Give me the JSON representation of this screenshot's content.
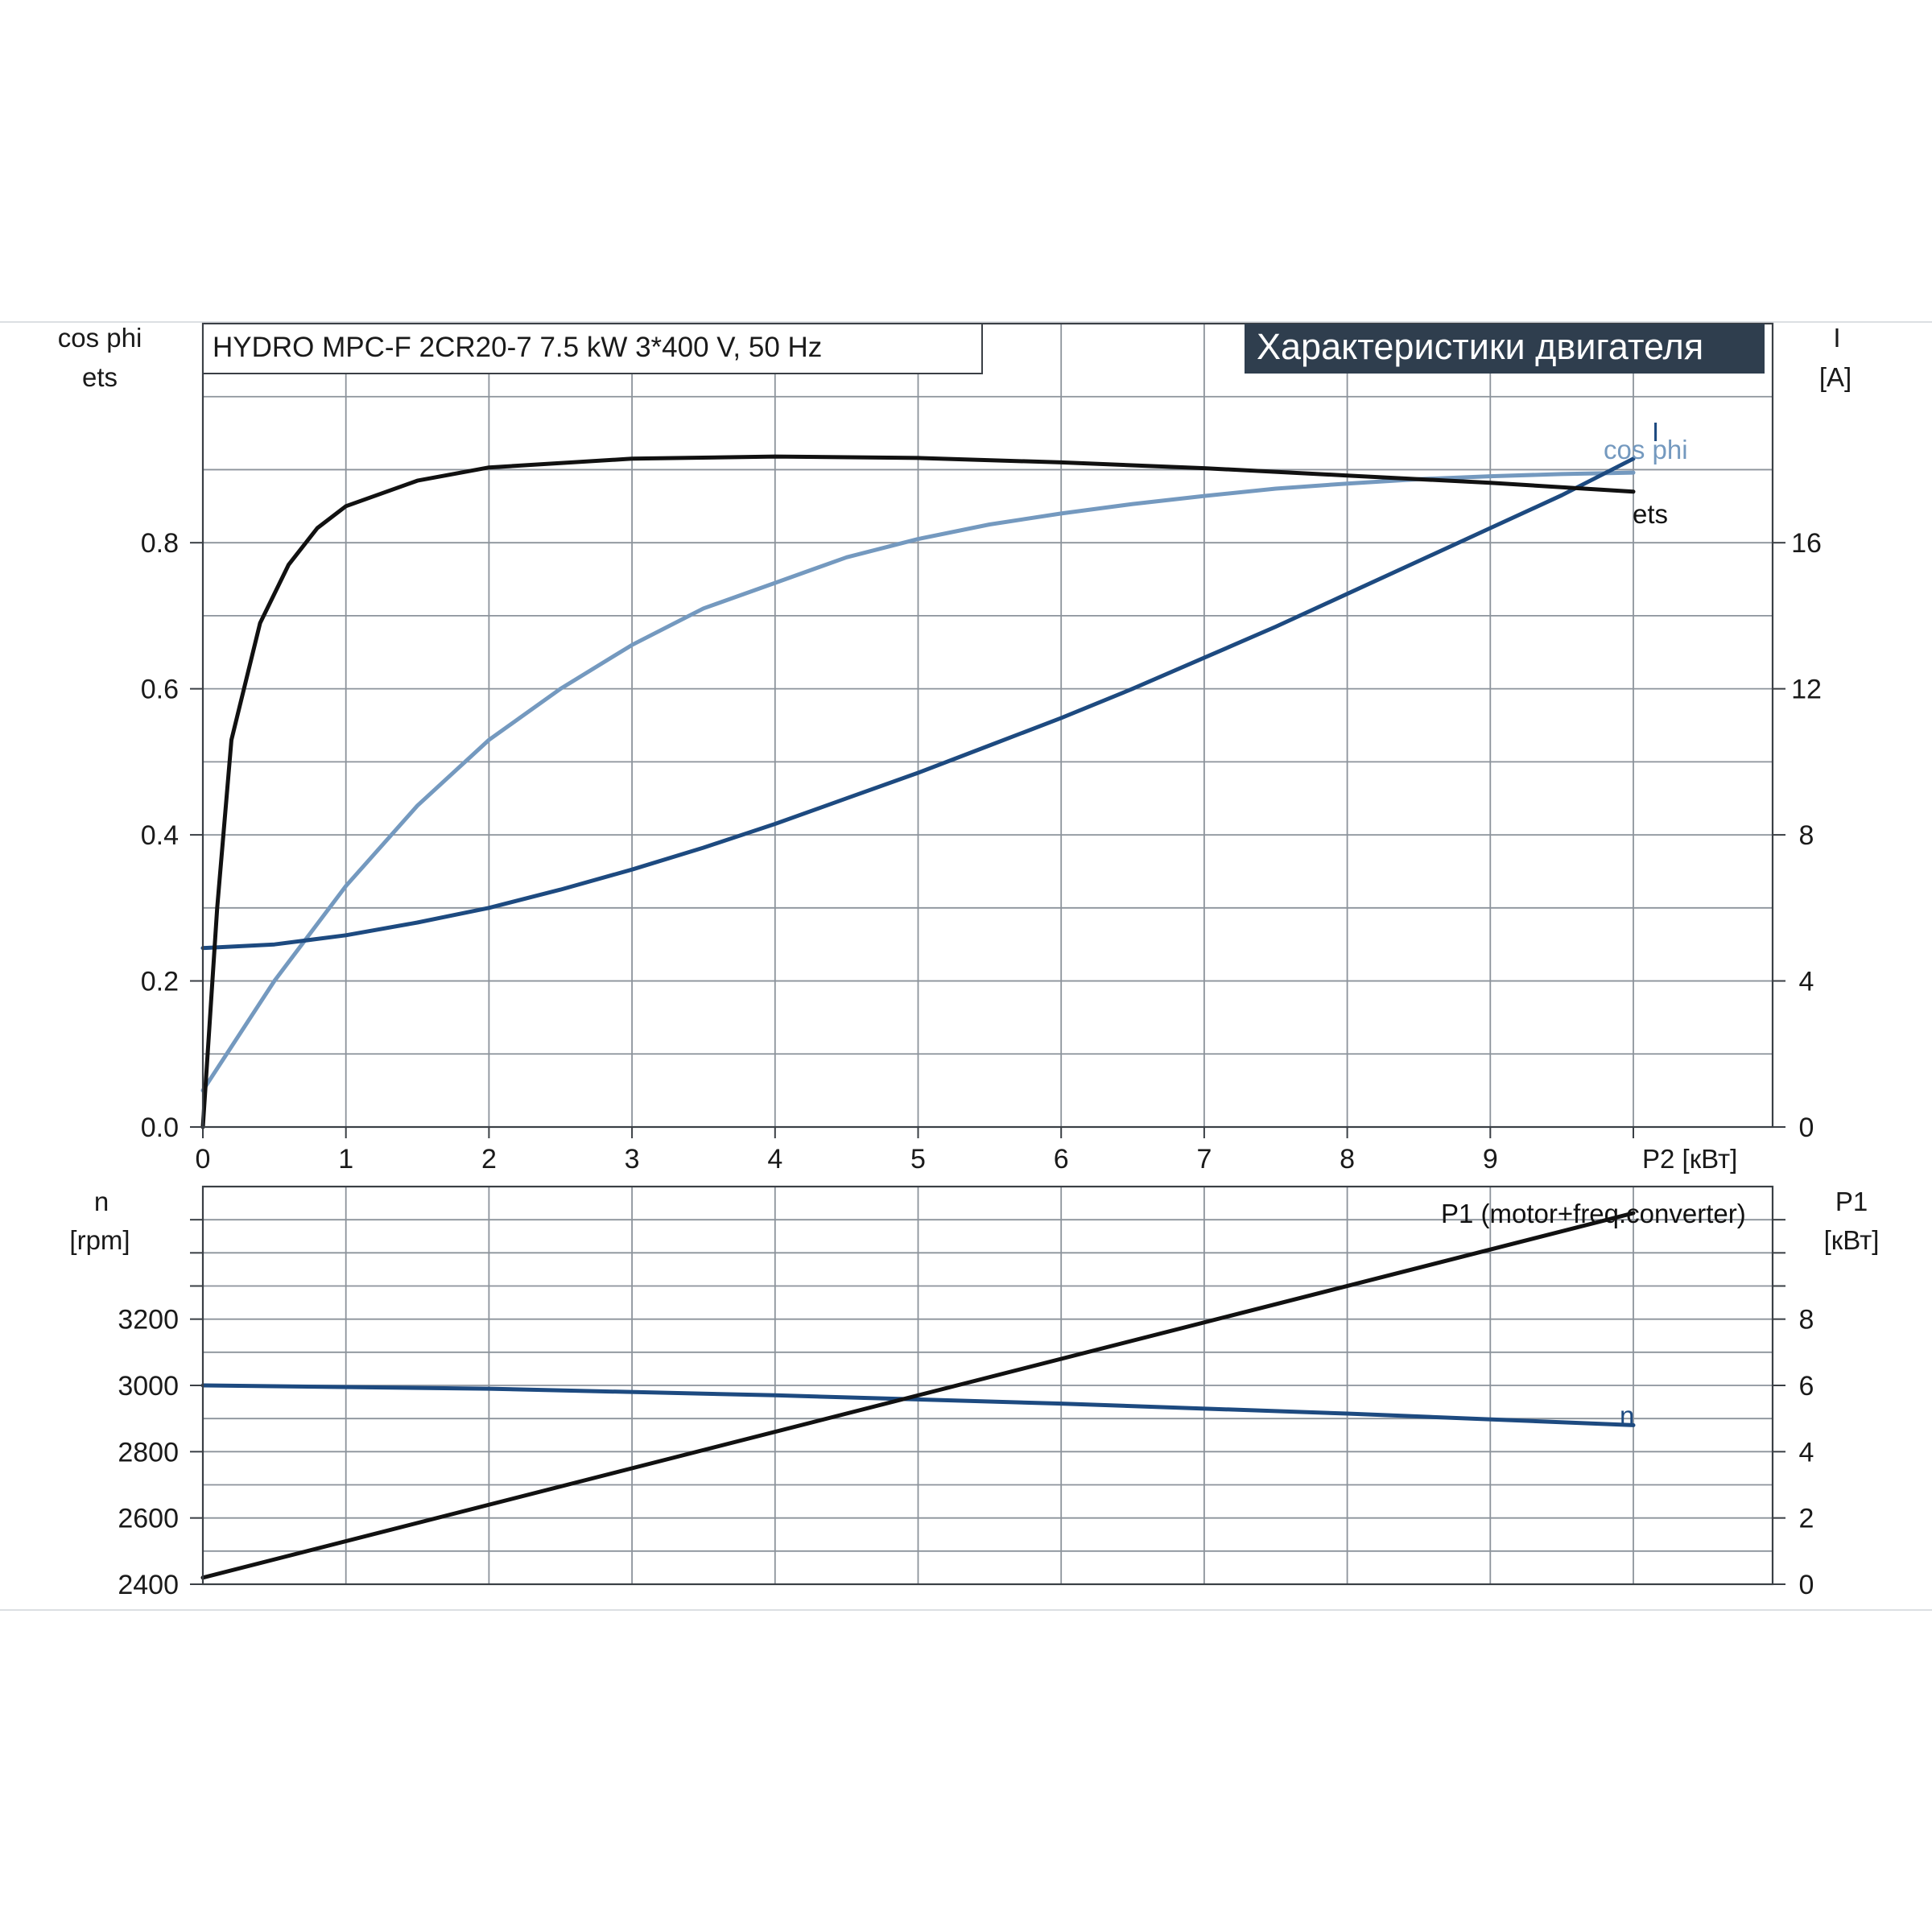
{
  "header": {
    "product": "HYDRO MPC-F 2CR20-7   7.5 kW   3*400 V, 50 Hz",
    "badge": "Характеристики двигателя"
  },
  "colors": {
    "background": "#ffffff",
    "grid": "#8c939b",
    "frame": "#3a3f45",
    "badge_bg": "#2f3e4e",
    "badge_text": "#ffffff",
    "ets": "#111111",
    "cos_phi": "#7499bf",
    "current": "#1d4a80",
    "speed": "#1d4a80",
    "p1": "#111111"
  },
  "chart_data": [
    {
      "type": "line",
      "name": "top-panel",
      "x_axis_label": "P2 [кВт]",
      "x_range": [
        0,
        11
      ],
      "x_ticks": [
        0,
        1,
        2,
        3,
        4,
        5,
        6,
        7,
        8,
        9
      ],
      "left_axis": {
        "label_line1": "cos phi",
        "label_line2": "ets",
        "range": [
          0,
          1.1
        ],
        "ticks": [
          "0.0",
          "0.2",
          "0.4",
          "0.6",
          "0.8"
        ]
      },
      "right_axis": {
        "label_line1": "I",
        "label_line2": "[A]",
        "range": [
          0,
          22
        ],
        "ticks": [
          "0",
          "4",
          "8",
          "12",
          "16"
        ]
      },
      "grid": true,
      "series": [
        {
          "name": "ets",
          "axis": "left",
          "label": "ets",
          "x": [
            0,
            0.1,
            0.2,
            0.4,
            0.6,
            0.8,
            1,
            1.5,
            2,
            3,
            4,
            5,
            6,
            7,
            8,
            9,
            10
          ],
          "y": [
            0,
            0.3,
            0.53,
            0.69,
            0.77,
            0.82,
            0.85,
            0.885,
            0.903,
            0.915,
            0.918,
            0.916,
            0.91,
            0.902,
            0.892,
            0.882,
            0.87
          ]
        },
        {
          "name": "cos phi",
          "axis": "left",
          "label": "cos phi",
          "x": [
            0,
            0.5,
            1,
            1.5,
            2,
            2.5,
            3,
            3.5,
            4,
            4.5,
            5,
            5.5,
            6,
            6.5,
            7,
            7.5,
            8,
            8.5,
            9,
            9.5,
            10
          ],
          "y": [
            0.05,
            0.2,
            0.33,
            0.44,
            0.53,
            0.6,
            0.66,
            0.71,
            0.745,
            0.78,
            0.805,
            0.825,
            0.84,
            0.853,
            0.864,
            0.874,
            0.881,
            0.887,
            0.891,
            0.894,
            0.896
          ]
        },
        {
          "name": "I",
          "axis": "right",
          "label": "I",
          "x": [
            0,
            0.5,
            1,
            1.5,
            2,
            2.5,
            3,
            3.5,
            4,
            4.5,
            5,
            5.5,
            6,
            6.5,
            7,
            7.5,
            8,
            8.5,
            9,
            9.5,
            10
          ],
          "y": [
            4.9,
            5.0,
            5.25,
            5.6,
            6.0,
            6.5,
            7.05,
            7.65,
            8.3,
            9.0,
            9.7,
            10.45,
            11.2,
            12.0,
            12.85,
            13.7,
            14.6,
            15.5,
            16.4,
            17.3,
            18.3
          ]
        }
      ]
    },
    {
      "type": "line",
      "name": "bottom-panel",
      "x_range": [
        0,
        11
      ],
      "left_axis": {
        "label_line1": "n",
        "label_line2": "[rpm]",
        "range": [
          2400,
          3600
        ],
        "ticks": [
          "2400",
          "2600",
          "2800",
          "3000",
          "3200"
        ]
      },
      "right_axis": {
        "label_line1": "P1",
        "label_line2": "[кВт]",
        "range": [
          0,
          12
        ],
        "ticks": [
          "0",
          "2",
          "4",
          "6",
          "8"
        ]
      },
      "grid": true,
      "series": [
        {
          "name": "n",
          "axis": "left",
          "label": "n",
          "x": [
            0,
            2,
            4,
            6,
            8,
            10
          ],
          "y": [
            3000,
            2990,
            2970,
            2945,
            2915,
            2880
          ]
        },
        {
          "name": "P1 (motor+freq.converter)",
          "axis": "right",
          "label": "P1 (motor+freq.converter)",
          "x": [
            0,
            10
          ],
          "y": [
            0.2,
            11.2
          ]
        }
      ]
    }
  ]
}
